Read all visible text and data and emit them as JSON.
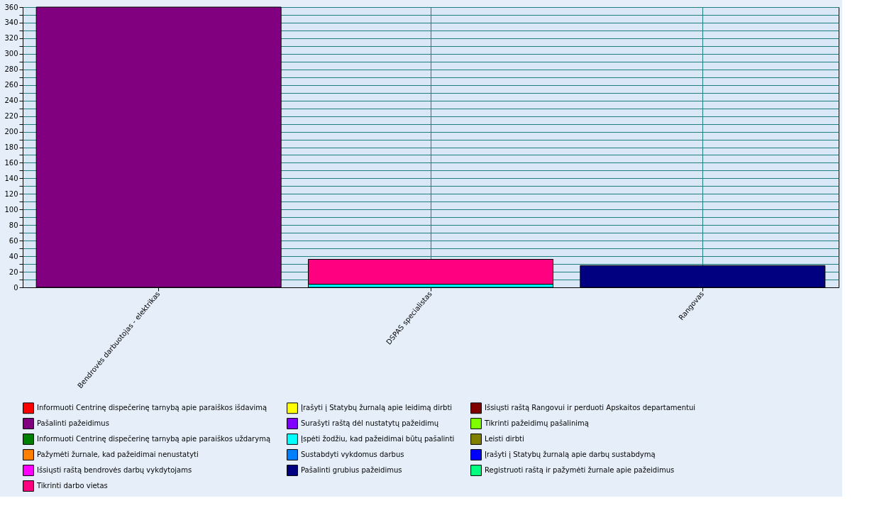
{
  "chart_data": {
    "type": "bar",
    "stacked": true,
    "categories": [
      "Bendrovės darbuotojas - elektrikas",
      "DSPAS specialistas",
      "Rangovas"
    ],
    "series": [
      {
        "name": "Informuoti Centrinę dispečerinę tarnybą apie paraiškos išdavimą",
        "color": "#ff0000",
        "values": [
          0,
          0,
          0
        ]
      },
      {
        "name": "Įrašyti į Statybų žurnalą apie leidimą dirbti",
        "color": "#ffff00",
        "values": [
          0,
          0,
          0
        ]
      },
      {
        "name": "Išsiųsti raštą Rangovui ir perduoti Apskaitos departamentui",
        "color": "#800000",
        "values": [
          0,
          0,
          0
        ]
      },
      {
        "name": "Pašalinti pažeidimus",
        "color": "#800080",
        "values": [
          360,
          0,
          0
        ]
      },
      {
        "name": "Surašyti raštą dėl nustatytų pažeidimų",
        "color": "#8000ff",
        "values": [
          0,
          0,
          0
        ]
      },
      {
        "name": "Tikrinti pažeidimų pašalinimą",
        "color": "#80ff00",
        "values": [
          0,
          0,
          0
        ]
      },
      {
        "name": "Informuoti Centrinę dispečerinę tarnybą apie paraiškos uždarymą",
        "color": "#008000",
        "values": [
          0,
          0,
          0
        ]
      },
      {
        "name": "Įspėti žodžiu, kad pažeidimai būtų pašalinti",
        "color": "#00ffff",
        "values": [
          0,
          4,
          0
        ]
      },
      {
        "name": "Leisti dirbti",
        "color": "#808000",
        "values": [
          0,
          0,
          0
        ]
      },
      {
        "name": "Pažymėti žurnale, kad pažeidimai nenustatyti",
        "color": "#ff8000",
        "values": [
          0,
          0,
          0
        ]
      },
      {
        "name": "Sustabdyti vykdomus darbus",
        "color": "#0080ff",
        "values": [
          0,
          0,
          0
        ]
      },
      {
        "name": "Įrašyti į Statybų žurnalą apie darbų sustabdymą",
        "color": "#0000ff",
        "values": [
          0,
          0,
          0
        ]
      },
      {
        "name": "Išsiųsti raštą bendrovės darbų vykdytojams",
        "color": "#ff00ff",
        "values": [
          0,
          0,
          0
        ]
      },
      {
        "name": "Pašalinti grubius pažeidimus",
        "color": "#000080",
        "values": [
          0,
          0,
          28
        ]
      },
      {
        "name": "Registruoti raštą ir pažymėti žurnale apie pažeidimus",
        "color": "#00ff80",
        "values": [
          0,
          0,
          0
        ]
      },
      {
        "name": "Tikrinti darbo vietas",
        "color": "#ff0080",
        "values": [
          0,
          32,
          0
        ]
      }
    ],
    "ylim": [
      0,
      360
    ],
    "yticks": [
      0,
      {
        "value": 10,
        "label": null
      },
      20,
      {
        "value": 30,
        "label": null
      },
      40,
      {
        "value": 50,
        "label": null
      },
      60,
      {
        "value": 70,
        "label": null
      },
      80,
      {
        "value": 90,
        "label": null
      },
      100,
      {
        "value": 110,
        "label": null
      },
      120,
      {
        "value": 130,
        "label": null
      },
      140,
      {
        "value": 150,
        "label": null
      },
      160,
      {
        "value": 170,
        "label": null
      },
      180,
      {
        "value": 190,
        "label": null
      },
      200,
      {
        "value": 210,
        "label": null
      },
      220,
      {
        "value": 230,
        "label": null
      },
      240,
      {
        "value": 250,
        "label": null
      },
      260,
      {
        "value": 270,
        "label": null
      },
      280,
      {
        "value": 290,
        "label": null
      },
      300,
      {
        "value": 310,
        "label": null
      },
      320,
      {
        "value": 330,
        "label": null
      },
      340,
      {
        "value": 350,
        "label": null
      },
      360
    ],
    "grid": true,
    "legend": "bottom"
  }
}
